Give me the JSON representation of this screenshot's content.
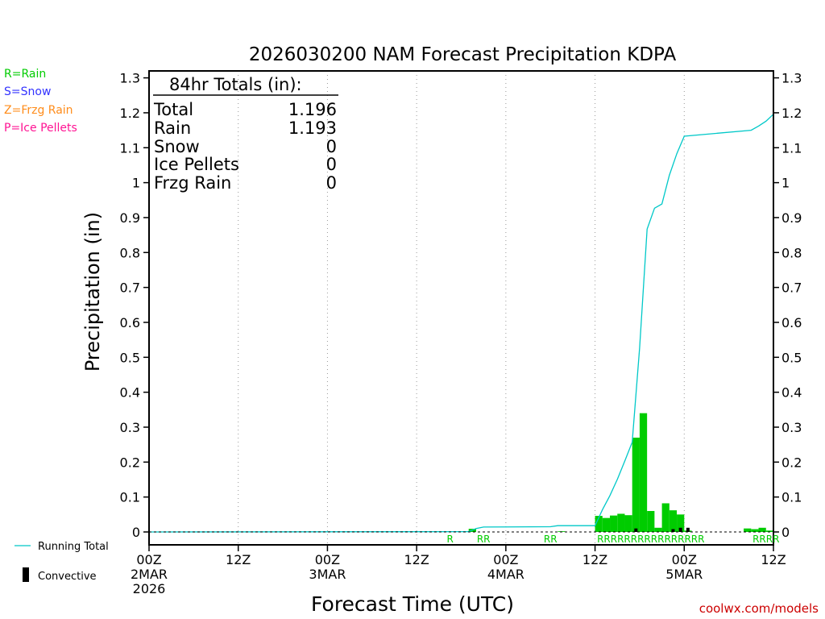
{
  "chart_data": {
    "type": "bar",
    "title": "2026030200 NAM Forecast Precipitation KDPA",
    "xlabel": "Forecast Time (UTC)",
    "ylabel": "Precipitation (in)",
    "credit": "coolwx.com/models",
    "xlim_hours": [
      0,
      84
    ],
    "ylim": [
      0,
      1.3
    ],
    "yticks": [
      0,
      0.1,
      0.2,
      0.3,
      0.4,
      0.5,
      0.6,
      0.7,
      0.8,
      0.9,
      1,
      1.1,
      1.2,
      1.3
    ],
    "ytick_labels": [
      "0",
      "0.1",
      "0.2",
      "0.3",
      "0.4",
      "0.5",
      "0.6",
      "0.7",
      "0.8",
      "0.9",
      "1",
      "1.1",
      "1.2",
      "1.3"
    ],
    "xticks": [
      {
        "hour": 0,
        "lines": [
          "00Z",
          "2MAR",
          "2026"
        ]
      },
      {
        "hour": 12,
        "lines": [
          "12Z"
        ]
      },
      {
        "hour": 24,
        "lines": [
          "00Z",
          "3MAR"
        ]
      },
      {
        "hour": 36,
        "lines": [
          "12Z"
        ]
      },
      {
        "hour": 48,
        "lines": [
          "00Z",
          "4MAR"
        ]
      },
      {
        "hour": 60,
        "lines": [
          "12Z"
        ]
      },
      {
        "hour": 72,
        "lines": [
          "00Z",
          "5MAR"
        ]
      },
      {
        "hour": 84,
        "lines": [
          "12Z"
        ]
      }
    ],
    "gridlines": "dotted-vertical",
    "colors": {
      "rain": "#00cc00",
      "snow": "#3333ff",
      "frzg_rain": "#ff8c1a",
      "ice_pellets": "#ff1493",
      "running_total": "#00c8c8",
      "convective": "#000000"
    },
    "ptype_legend": [
      {
        "label": "R=Rain",
        "color": "#00cc00"
      },
      {
        "label": "S=Snow",
        "color": "#3333ff"
      },
      {
        "label": "Z=Frzg Rain",
        "color": "#ff8c1a"
      },
      {
        "label": "P=Ice Pellets",
        "color": "#ff1493"
      }
    ],
    "series_legend": {
      "running_total": "Running Total",
      "convective": "Convective"
    },
    "totals": {
      "header": "84hr Totals (in):",
      "rows": [
        {
          "label": "Total",
          "value": "1.196"
        },
        {
          "label": "Rain",
          "value": "1.193"
        },
        {
          "label": "Snow",
          "value": "0"
        },
        {
          "label": "Ice Pellets",
          "value": "0"
        },
        {
          "label": "Frzg Rain",
          "value": "0"
        }
      ]
    },
    "bar_width_hours": 1,
    "bars": [
      {
        "hour": 44,
        "value": 0.009
      },
      {
        "hour": 56,
        "value": 0.002
      },
      {
        "hour": 61,
        "value": 0.046
      },
      {
        "hour": 62,
        "value": 0.04
      },
      {
        "hour": 63,
        "value": 0.047
      },
      {
        "hour": 64,
        "value": 0.052
      },
      {
        "hour": 65,
        "value": 0.048
      },
      {
        "hour": 66,
        "value": 0.27
      },
      {
        "hour": 67,
        "value": 0.34
      },
      {
        "hour": 68,
        "value": 0.06
      },
      {
        "hour": 69,
        "value": 0.012
      },
      {
        "hour": 70,
        "value": 0.082
      },
      {
        "hour": 71,
        "value": 0.062
      },
      {
        "hour": 72,
        "value": 0.05
      },
      {
        "hour": 73,
        "value": 0.004
      },
      {
        "hour": 81,
        "value": 0.01
      },
      {
        "hour": 82,
        "value": 0.008
      },
      {
        "hour": 83,
        "value": 0.012
      },
      {
        "hour": 84,
        "value": 0.004
      }
    ],
    "convective_bars": [
      {
        "hour": 65.5,
        "value": 0.01
      },
      {
        "hour": 70.5,
        "value": 0.008
      },
      {
        "hour": 71.5,
        "value": 0.012
      },
      {
        "hour": 72.5,
        "value": 0.012
      }
    ],
    "running_total": {
      "x": [
        0,
        43,
        44,
        45,
        54,
        55,
        60,
        61,
        62,
        63,
        64,
        65,
        66,
        67,
        68,
        69,
        70,
        71,
        72,
        81,
        82,
        83,
        84
      ],
      "y": [
        0,
        0.001,
        0.01,
        0.014,
        0.015,
        0.018,
        0.018,
        0.064,
        0.104,
        0.151,
        0.203,
        0.257,
        0.527,
        0.867,
        0.927,
        0.939,
        1.021,
        1.083,
        1.133,
        1.15,
        1.162,
        1.176,
        1.196
      ]
    },
    "ptype_strip": [
      {
        "text": "R",
        "hour": 40.5,
        "color": "#00cc00"
      },
      {
        "text": "RR",
        "hour": 45,
        "color": "#00cc00"
      },
      {
        "text": "RR",
        "hour": 54,
        "color": "#00cc00"
      },
      {
        "text": "RRRRRRRRRRRRRRRR",
        "hour": 67.5,
        "color": "#00cc00"
      },
      {
        "text": "RRRR",
        "hour": 83,
        "color": "#00cc00"
      }
    ]
  }
}
